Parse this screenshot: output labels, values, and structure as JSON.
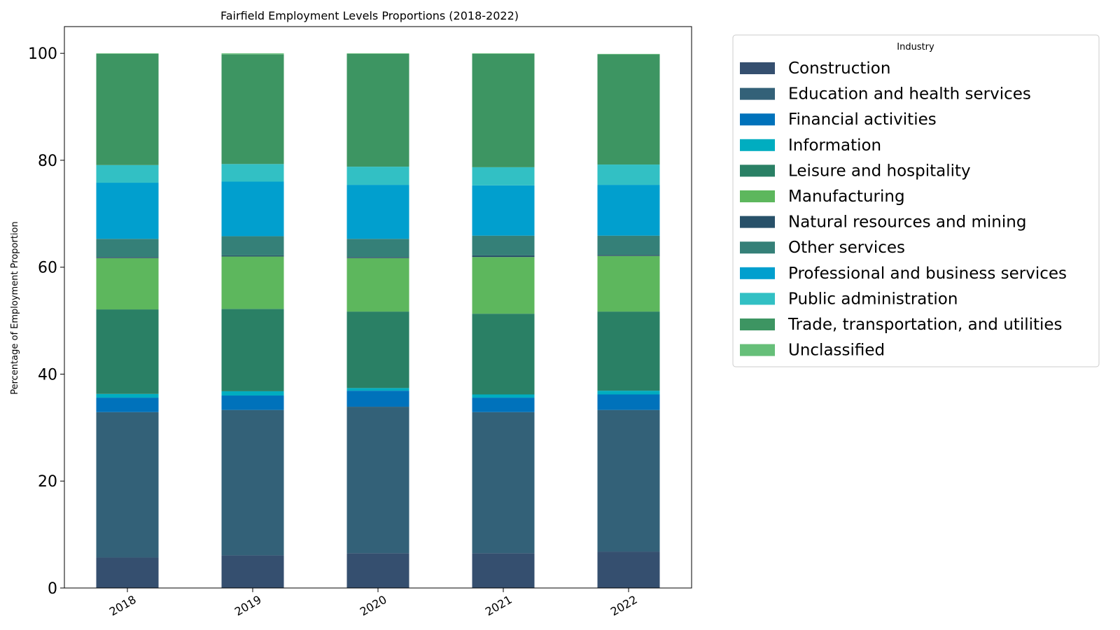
{
  "chart_data": {
    "type": "bar",
    "stacked": true,
    "title": "Fairfield Employment Levels Proportions (2018-2022)",
    "xlabel": "",
    "ylabel": "Percentage of Employment Proportion",
    "ylim": [
      0,
      105
    ],
    "yticks": [
      "0",
      "20",
      "40",
      "60",
      "80",
      "100"
    ],
    "categories": [
      "2018",
      "2019",
      "2020",
      "2021",
      "2022"
    ],
    "grid": false,
    "legend": {
      "title": "Industry",
      "placement": "outside-right"
    },
    "series": [
      {
        "name": "Construction",
        "color": "#354f6f",
        "values": [
          5.7,
          6.1,
          6.5,
          6.5,
          6.8
        ]
      },
      {
        "name": "Education and health services",
        "color": "#336178",
        "values": [
          27.2,
          27.2,
          27.4,
          26.4,
          26.5
        ]
      },
      {
        "name": "Financial activities",
        "color": "#0072bb",
        "values": [
          2.7,
          2.7,
          3.0,
          2.7,
          2.9
        ]
      },
      {
        "name": "Information",
        "color": "#00adc0",
        "values": [
          0.7,
          0.8,
          0.5,
          0.6,
          0.7
        ]
      },
      {
        "name": "Leisure and hospitality",
        "color": "#2a8065",
        "values": [
          15.8,
          15.4,
          14.3,
          15.1,
          14.8
        ]
      },
      {
        "name": "Manufacturing",
        "color": "#5db75d",
        "values": [
          9.6,
          9.8,
          10.0,
          10.6,
          10.4
        ]
      },
      {
        "name": "Natural resources and mining",
        "color": "#285169",
        "values": [
          0.2,
          0.2,
          0.2,
          0.3,
          0.2
        ]
      },
      {
        "name": "Other services",
        "color": "#358078",
        "values": [
          3.4,
          3.6,
          3.4,
          3.7,
          3.6
        ]
      },
      {
        "name": "Professional and business services",
        "color": "#019fce",
        "values": [
          10.5,
          10.2,
          10.1,
          9.4,
          9.5
        ]
      },
      {
        "name": "Public administration",
        "color": "#32c0c4",
        "values": [
          3.3,
          3.3,
          3.4,
          3.4,
          3.8
        ]
      },
      {
        "name": "Trade, transportation, and utilities",
        "color": "#3d9562",
        "values": [
          20.8,
          20.5,
          21.1,
          21.2,
          20.6
        ]
      },
      {
        "name": "Unclassified",
        "color": "#66bf79",
        "values": [
          0.1,
          0.2,
          0.1,
          0.1,
          0.1
        ]
      }
    ]
  }
}
